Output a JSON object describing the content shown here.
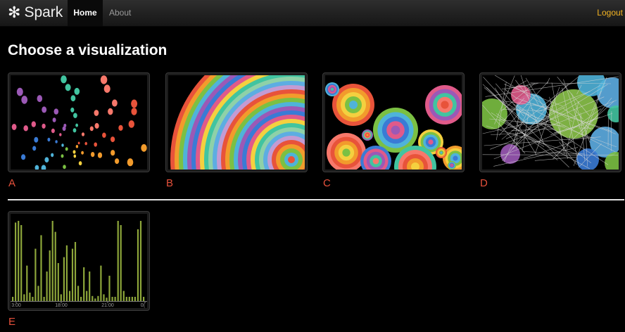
{
  "navbar": {
    "brand_icon": "asterisk-icon",
    "brand_glyph": "✻",
    "brand": "Spark",
    "home": "Home",
    "about": "About",
    "logout": "Logout"
  },
  "page": {
    "title": "Choose a visualization"
  },
  "visualizations": [
    {
      "label": "A"
    },
    {
      "label": "B"
    },
    {
      "label": "C"
    },
    {
      "label": "D"
    },
    {
      "label": "E"
    }
  ],
  "chart_data": {
    "type": "bar",
    "x_ticks": [
      "3:00",
      "18:00",
      "21:00",
      "0("
    ],
    "bar_color": "#8da63a",
    "values": [
      0.05,
      0.93,
      0.95,
      0.9,
      0.08,
      0.42,
      0.1,
      0.05,
      0.62,
      0.18,
      0.78,
      0.05,
      0.35,
      0.6,
      0.95,
      0.82,
      0.45,
      0.08,
      0.52,
      0.66,
      0.12,
      0.62,
      0.7,
      0.18,
      0.05,
      0.4,
      0.12,
      0.35,
      0.06,
      0.03,
      0.06,
      0.42,
      0.08,
      0.04,
      0.3,
      0.05,
      0.05,
      0.95,
      0.9,
      0.12,
      0.05,
      0.05,
      0.05,
      0.05,
      0.85,
      0.95,
      0.05
    ]
  }
}
